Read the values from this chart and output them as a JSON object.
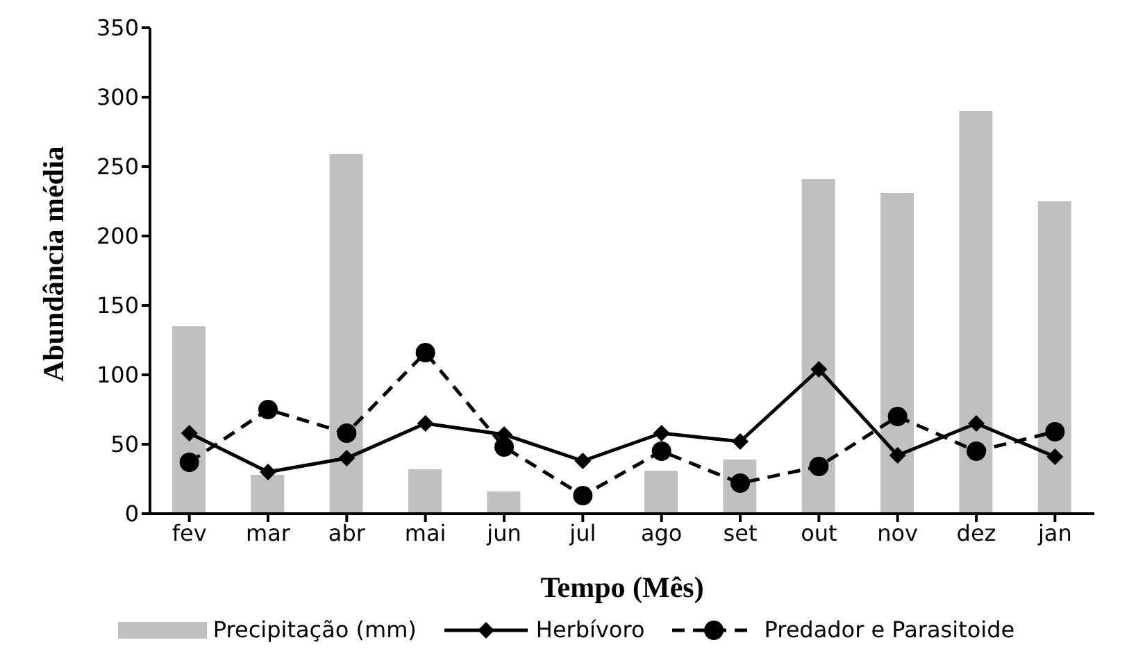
{
  "chart_data": {
    "type": "bar",
    "xlabel": "Tempo (Mês)",
    "ylabel": "Abundância média",
    "categories": [
      "fev",
      "mar",
      "abr",
      "mai",
      "jun",
      "jul",
      "ago",
      "set",
      "out",
      "nov",
      "dez",
      "jan"
    ],
    "series": [
      {
        "name": "Precipitação (mm)",
        "color": "#c0c0c0",
        "values": [
          135,
          28,
          259,
          32,
          16,
          null,
          31,
          39,
          241,
          231,
          290,
          225
        ]
      },
      {
        "name": "Herbívoro",
        "type": "line",
        "color": "#000000",
        "marker": "diamond",
        "line_style": "solid",
        "values": [
          58,
          30,
          40,
          65,
          57,
          38,
          58,
          52,
          104,
          42,
          65,
          41
        ]
      },
      {
        "name": "Predador e Parasitoide",
        "type": "line",
        "color": "#000000",
        "marker": "circle",
        "line_style": "dashed",
        "values": [
          37,
          75,
          58,
          116,
          48,
          13,
          45,
          22,
          34,
          70,
          45,
          59
        ]
      }
    ],
    "ylim": [
      0,
      350
    ],
    "yticks": [
      0,
      50,
      100,
      150,
      200,
      250,
      300,
      350
    ],
    "grid": false,
    "legend": "bottom"
  }
}
